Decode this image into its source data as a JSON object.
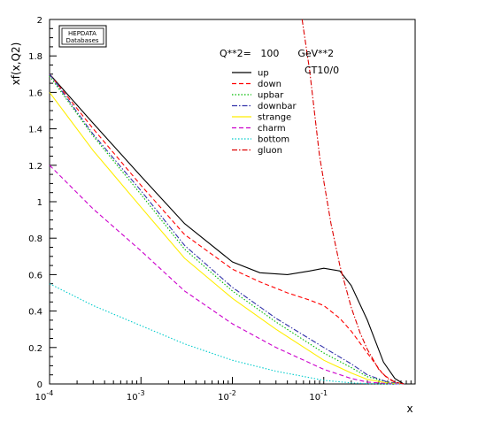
{
  "chart_data": {
    "type": "line",
    "title": "",
    "xlabel": "x",
    "ylabel": "xf(x,Q2)",
    "xscale": "log",
    "xlim": [
      0.0001,
      1
    ],
    "ylim": [
      0,
      2
    ],
    "x_tick_labels": [
      "10^-4",
      "10^-3",
      "10^-2",
      "10^-1"
    ],
    "y_tick_labels": [
      "0",
      "0.2",
      "0.4",
      "0.6",
      "0.8",
      "1",
      "1.2",
      "1.4",
      "1.6",
      "1.8",
      "2"
    ],
    "annotation_q2": "Q**2=   100      GeV**2",
    "annotation_set": "CT10/0",
    "logo_line1": "HEPDATA",
    "logo_line2": "Databases",
    "legend_position": "upper-middle",
    "grid": false,
    "series": [
      {
        "name": "up",
        "color": "#000000",
        "dash": "solid",
        "x": [
          0.0001,
          0.0003,
          0.001,
          0.003,
          0.01,
          0.02,
          0.04,
          0.07,
          0.1,
          0.15,
          0.2,
          0.3,
          0.45,
          0.6,
          0.75
        ],
        "y": [
          1.7,
          1.43,
          1.14,
          0.88,
          0.67,
          0.61,
          0.6,
          0.62,
          0.635,
          0.62,
          0.54,
          0.35,
          0.12,
          0.03,
          0.0
        ]
      },
      {
        "name": "down",
        "color": "#ff0000",
        "dash": "dashed",
        "x": [
          0.0001,
          0.0003,
          0.001,
          0.003,
          0.01,
          0.02,
          0.04,
          0.07,
          0.1,
          0.15,
          0.2,
          0.3,
          0.45,
          0.6,
          0.75
        ],
        "y": [
          1.7,
          1.4,
          1.09,
          0.82,
          0.63,
          0.56,
          0.5,
          0.46,
          0.43,
          0.36,
          0.29,
          0.17,
          0.05,
          0.01,
          0.0
        ]
      },
      {
        "name": "upbar",
        "color": "#00bb00",
        "dash": "dotted",
        "x": [
          0.0001,
          0.0003,
          0.001,
          0.003,
          0.01,
          0.03,
          0.1,
          0.2,
          0.3,
          0.5,
          0.75
        ],
        "y": [
          1.69,
          1.36,
          1.04,
          0.74,
          0.51,
          0.34,
          0.17,
          0.09,
          0.04,
          0.01,
          0.0
        ]
      },
      {
        "name": "downbar",
        "color": "#3333aa",
        "dash": "dashdot",
        "x": [
          0.0001,
          0.0003,
          0.001,
          0.003,
          0.01,
          0.03,
          0.1,
          0.2,
          0.3,
          0.5,
          0.75
        ],
        "y": [
          1.7,
          1.37,
          1.06,
          0.76,
          0.53,
          0.36,
          0.2,
          0.11,
          0.05,
          0.01,
          0.0
        ]
      },
      {
        "name": "strange",
        "color": "#ffee00",
        "dash": "solid",
        "x": [
          0.0001,
          0.0003,
          0.001,
          0.003,
          0.01,
          0.03,
          0.1,
          0.2,
          0.3,
          0.5,
          0.75
        ],
        "y": [
          1.6,
          1.28,
          0.97,
          0.69,
          0.47,
          0.3,
          0.13,
          0.06,
          0.025,
          0.005,
          0.0
        ]
      },
      {
        "name": "charm",
        "color": "#cc00cc",
        "dash": "dashed",
        "x": [
          0.0001,
          0.0003,
          0.001,
          0.003,
          0.01,
          0.03,
          0.1,
          0.2,
          0.3,
          0.5,
          0.75
        ],
        "y": [
          1.2,
          0.96,
          0.73,
          0.51,
          0.33,
          0.2,
          0.08,
          0.03,
          0.01,
          0.002,
          0.0
        ]
      },
      {
        "name": "bottom",
        "color": "#00cccc",
        "dash": "dotted",
        "x": [
          0.0001,
          0.0003,
          0.001,
          0.003,
          0.01,
          0.03,
          0.1,
          0.2,
          0.3,
          0.5,
          0.75
        ],
        "y": [
          0.55,
          0.43,
          0.32,
          0.22,
          0.13,
          0.07,
          0.02,
          0.006,
          0.002,
          0.0,
          0.0
        ]
      },
      {
        "name": "gluon",
        "color": "#dd0000",
        "dash": "dashdot",
        "x": [
          0.058,
          0.07,
          0.09,
          0.12,
          0.15,
          0.2,
          0.25,
          0.3,
          0.4,
          0.5,
          0.6,
          0.75
        ],
        "y": [
          2.0,
          1.72,
          1.25,
          0.88,
          0.65,
          0.42,
          0.28,
          0.19,
          0.08,
          0.03,
          0.01,
          0.0
        ]
      }
    ]
  }
}
